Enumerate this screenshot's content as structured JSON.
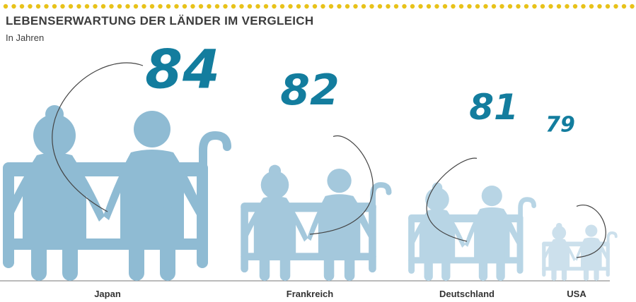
{
  "title": "LEBENSERWARTUNG DER LÄNDER IM VERGLEICH",
  "subtitle": "In Jahren",
  "colors": {
    "dots": "#e8c21a",
    "number": "#137d9e",
    "figures": [
      "#8fbbd3",
      "#a4c8dc",
      "#b8d5e5",
      "#cce0ec"
    ],
    "axis": "#777777"
  },
  "chart_data": {
    "type": "bar",
    "title": "LEBENSERWARTUNG DER LÄNDER IM VERGLEICH",
    "subtitle": "In Jahren",
    "categories": [
      "Japan",
      "Frankreich",
      "Deutschland",
      "USA"
    ],
    "values": [
      84,
      82,
      81,
      79
    ],
    "value_labels": [
      "84",
      "82",
      "81",
      "79"
    ],
    "grid": false,
    "legend": "none"
  }
}
